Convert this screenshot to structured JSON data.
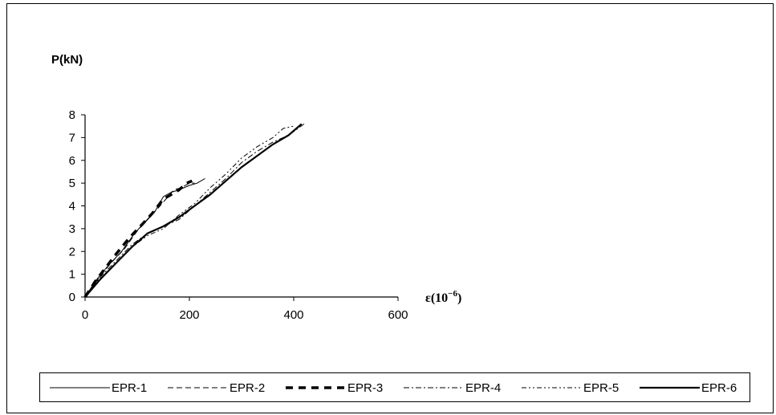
{
  "chart_data": {
    "type": "line",
    "ylabel": "P(kN)",
    "xlabel_main": "ε(10",
    "xlabel_exp": "−6",
    "xlabel_close": ")",
    "xlim": [
      0,
      600
    ],
    "ylim": [
      0,
      8
    ],
    "xticks": [
      "0",
      "200",
      "400",
      "600"
    ],
    "yticks": [
      "0",
      "1",
      "2",
      "3",
      "4",
      "5",
      "6",
      "7",
      "8"
    ],
    "grid": false,
    "legend_position": "bottom",
    "series": [
      {
        "name": "EPR-1",
        "style": "solid-thin",
        "x": [
          0,
          20,
          45,
          70,
          95,
          115,
          135,
          150,
          165,
          180,
          200,
          215,
          230
        ],
        "y": [
          0,
          0.7,
          1.4,
          2.0,
          2.8,
          3.3,
          3.8,
          4.4,
          4.6,
          4.7,
          4.9,
          5.0,
          5.2
        ]
      },
      {
        "name": "EPR-2",
        "style": "dashed",
        "x": [
          0,
          25,
          50,
          75,
          100,
          120,
          140,
          155,
          170,
          185,
          200,
          210
        ],
        "y": [
          0,
          0.8,
          1.5,
          2.1,
          2.9,
          3.4,
          3.9,
          4.3,
          4.7,
          4.8,
          5.0,
          5.0
        ]
      },
      {
        "name": "EPR-3",
        "style": "heavy-dashed",
        "x": [
          0,
          20,
          40,
          60,
          85,
          110,
          130,
          150,
          165,
          180,
          195,
          205
        ],
        "y": [
          0,
          0.7,
          1.3,
          1.9,
          2.6,
          3.2,
          3.7,
          4.3,
          4.5,
          4.7,
          5.0,
          5.1
        ]
      },
      {
        "name": "EPR-4",
        "style": "dash-dot",
        "x": [
          0,
          30,
          60,
          90,
          120,
          150,
          180,
          210,
          240,
          270,
          300,
          330,
          360,
          390,
          420
        ],
        "y": [
          0,
          0.9,
          1.6,
          2.3,
          2.8,
          3.1,
          3.4,
          4.0,
          4.6,
          5.2,
          5.9,
          6.4,
          6.8,
          7.1,
          7.6
        ]
      },
      {
        "name": "EPR-5",
        "style": "dash-dot-dot",
        "x": [
          0,
          30,
          60,
          90,
          120,
          150,
          180,
          210,
          240,
          270,
          300,
          330,
          360,
          380,
          400
        ],
        "y": [
          0,
          0.8,
          1.5,
          2.2,
          2.7,
          3.0,
          3.6,
          4.1,
          4.8,
          5.4,
          6.1,
          6.6,
          7.0,
          7.4,
          7.5
        ]
      },
      {
        "name": "EPR-6",
        "style": "solid-thick",
        "x": [
          0,
          30,
          60,
          90,
          120,
          150,
          180,
          210,
          240,
          270,
          300,
          330,
          360,
          390,
          415
        ],
        "y": [
          0,
          0.8,
          1.5,
          2.2,
          2.8,
          3.1,
          3.5,
          4.0,
          4.5,
          5.1,
          5.7,
          6.2,
          6.7,
          7.1,
          7.6
        ]
      }
    ]
  }
}
